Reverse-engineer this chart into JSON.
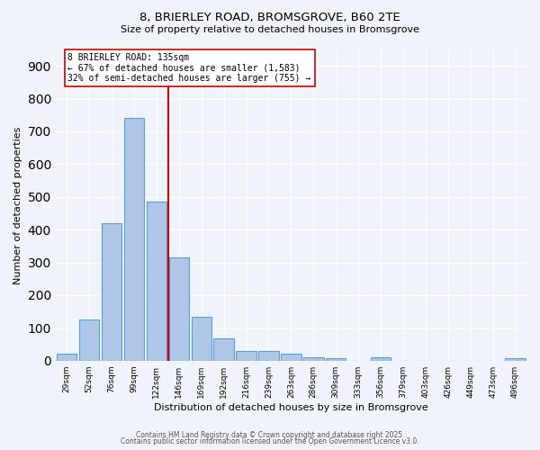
{
  "title_line1": "8, BRIERLEY ROAD, BROMSGROVE, B60 2TE",
  "title_line2": "Size of property relative to detached houses in Bromsgrove",
  "xlabel": "Distribution of detached houses by size in Bromsgrove",
  "ylabel": "Number of detached properties",
  "bin_labels": [
    "29sqm",
    "52sqm",
    "76sqm",
    "99sqm",
    "122sqm",
    "146sqm",
    "169sqm",
    "192sqm",
    "216sqm",
    "239sqm",
    "263sqm",
    "286sqm",
    "309sqm",
    "333sqm",
    "356sqm",
    "379sqm",
    "403sqm",
    "426sqm",
    "449sqm",
    "473sqm",
    "496sqm"
  ],
  "bin_edges": [
    29,
    52,
    76,
    99,
    122,
    146,
    169,
    192,
    216,
    239,
    263,
    286,
    309,
    333,
    356,
    379,
    403,
    426,
    449,
    473,
    496,
    519
  ],
  "bar_heights": [
    20,
    125,
    420,
    740,
    485,
    315,
    135,
    68,
    30,
    30,
    20,
    10,
    8,
    0,
    10,
    0,
    0,
    0,
    0,
    0,
    8
  ],
  "bar_color": "#aec6e8",
  "bar_edge_color": "#5a9fd4",
  "vline_x": 135,
  "vline_color": "#cc0000",
  "annotation_text": "8 BRIERLEY ROAD: 135sqm\n← 67% of detached houses are smaller (1,583)\n32% of semi-detached houses are larger (755) →",
  "annotation_box_color": "#ffffff",
  "annotation_box_edge": "#cc0000",
  "ylim": [
    0,
    950
  ],
  "yticks": [
    0,
    100,
    200,
    300,
    400,
    500,
    600,
    700,
    800,
    900
  ],
  "background_color": "#f0f4fa",
  "grid_color": "#ffffff",
  "footer_line1": "Contains HM Land Registry data © Crown copyright and database right 2025.",
  "footer_line2": "Contains public sector information licensed under the Open Government Licence v3.0."
}
